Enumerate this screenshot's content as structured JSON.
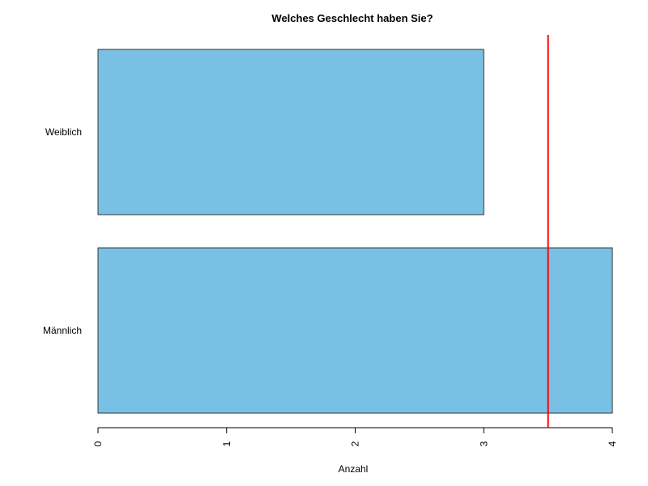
{
  "chart_data": {
    "type": "bar",
    "orientation": "horizontal",
    "title": "Welches Geschlecht haben Sie?",
    "xlabel": "Anzahl",
    "ylabel": "",
    "categories": [
      "Männlich",
      "Weiblich"
    ],
    "values": [
      4,
      3
    ],
    "xlim": [
      0,
      4
    ],
    "xticks": [
      0,
      1,
      2,
      3,
      4
    ],
    "tick_labels": [
      "0",
      "1",
      "2",
      "3",
      "4"
    ],
    "bar_color": "#78C1E5",
    "bar_border_color": "#333333",
    "reference_line": {
      "value": 3.5,
      "color": "#FF0000"
    },
    "grid": false,
    "legend": "none"
  }
}
